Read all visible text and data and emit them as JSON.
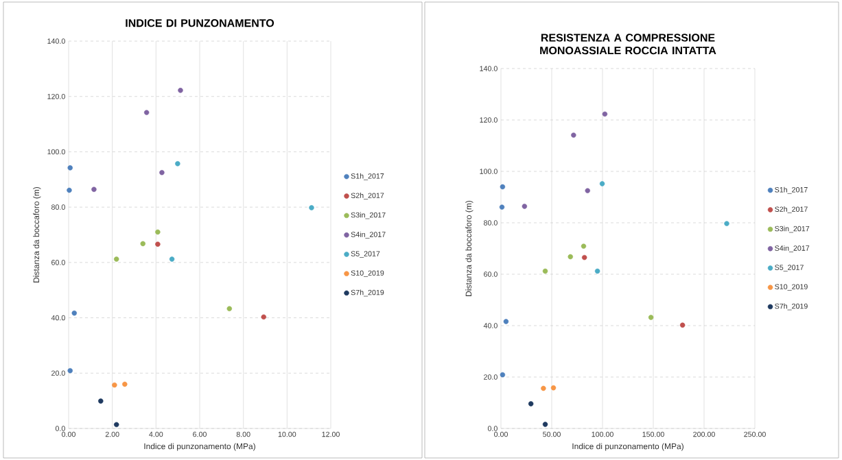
{
  "chart_data": [
    {
      "type": "scatter",
      "title": "INDICE DI PUNZONAMENTO",
      "xlabel": "Indice di punzonamento (MPa)",
      "ylabel": "Distanza da boccaforo (m)",
      "xlim": [
        0,
        12
      ],
      "ylim": [
        0,
        140
      ],
      "xticks": [
        {
          "value": 0,
          "label": "0.00"
        },
        {
          "value": 2,
          "label": "2.00"
        },
        {
          "value": 4,
          "label": "4.00"
        },
        {
          "value": 6,
          "label": "6.00"
        },
        {
          "value": 8,
          "label": "8.00"
        },
        {
          "value": 10,
          "label": "10.00"
        },
        {
          "value": 12,
          "label": "12.00"
        }
      ],
      "yticks": [
        {
          "value": 0,
          "label": "0.0"
        },
        {
          "value": 20,
          "label": "20.0"
        },
        {
          "value": 40,
          "label": "40.0"
        },
        {
          "value": 60,
          "label": "60.0"
        },
        {
          "value": 80,
          "label": "80.0"
        },
        {
          "value": 100,
          "label": "100.0"
        },
        {
          "value": 120,
          "label": "120.0"
        },
        {
          "value": 140,
          "label": "140.0"
        }
      ],
      "grid": true,
      "legend": "right",
      "marker": "circle",
      "series": [
        {
          "name": "S1h_2017",
          "color": "#4f81bd",
          "x": [
            0.07,
            0.03,
            0.26,
            0.07
          ],
          "values": [
            94.2,
            86.1,
            41.7,
            20.9
          ]
        },
        {
          "name": "S2h_2017",
          "color": "#c0504d",
          "x": [
            4.08,
            8.93
          ],
          "values": [
            66.6,
            40.3
          ]
        },
        {
          "name": "S3in_2017",
          "color": "#9bbb59",
          "x": [
            2.19,
            3.4,
            4.08,
            7.36
          ],
          "values": [
            61.2,
            66.8,
            71.0,
            43.3
          ]
        },
        {
          "name": "S4in_2017",
          "color": "#8064a2",
          "x": [
            1.16,
            3.57,
            4.27,
            5.12
          ],
          "values": [
            86.4,
            114.2,
            92.5,
            122.2
          ]
        },
        {
          "name": "S5_2017",
          "color": "#4bacc6",
          "x": [
            4.73,
            4.99,
            11.12
          ],
          "values": [
            61.2,
            95.7,
            79.8
          ]
        },
        {
          "name": "S10_2019",
          "color": "#f79646",
          "x": [
            2.1,
            2.57
          ],
          "values": [
            15.7,
            16.0
          ]
        },
        {
          "name": "S7h_2019",
          "color": "#1f3a60",
          "x": [
            1.47,
            2.19
          ],
          "values": [
            9.9,
            1.4
          ]
        }
      ]
    },
    {
      "type": "scatter",
      "title": "RESISTENZA A COMPRESSIONE MONOASSIALE ROCCIA INTATTA",
      "xlabel": "Indice di punzonamento (MPa)",
      "ylabel": "Distanza da boccaforo (m)",
      "xlim": [
        0,
        250
      ],
      "ylim": [
        0,
        140
      ],
      "xticks": [
        {
          "value": 0,
          "label": "0.00"
        },
        {
          "value": 50,
          "label": "50.00"
        },
        {
          "value": 100,
          "label": "100.00"
        },
        {
          "value": 150,
          "label": "150.00"
        },
        {
          "value": 200,
          "label": "200.00"
        },
        {
          "value": 250,
          "label": "250.00"
        }
      ],
      "yticks": [
        {
          "value": 0,
          "label": "0.0"
        },
        {
          "value": 20,
          "label": "20.0"
        },
        {
          "value": 40,
          "label": "40.0"
        },
        {
          "value": 60,
          "label": "60.0"
        },
        {
          "value": 80,
          "label": "80.0"
        },
        {
          "value": 100,
          "label": "100.0"
        },
        {
          "value": 120,
          "label": "120.0"
        },
        {
          "value": 140,
          "label": "140.0"
        }
      ],
      "grid": true,
      "legend": "right",
      "marker": "circle",
      "series": [
        {
          "name": "S1h_2017",
          "color": "#4f81bd",
          "x": [
            1.6,
            1.0,
            5.0,
            1.6
          ],
          "values": [
            94.0,
            86.1,
            41.6,
            20.9
          ]
        },
        {
          "name": "S2h_2017",
          "color": "#c0504d",
          "x": [
            82.2,
            178.8
          ],
          "values": [
            66.5,
            40.2
          ]
        },
        {
          "name": "S3in_2017",
          "color": "#9bbb59",
          "x": [
            43.6,
            68.4,
            81.4,
            147.7
          ],
          "values": [
            61.2,
            66.8,
            70.9,
            43.2
          ]
        },
        {
          "name": "S4in_2017",
          "color": "#8064a2",
          "x": [
            23.2,
            71.5,
            85.3,
            102.3
          ],
          "values": [
            86.4,
            114.1,
            92.5,
            122.3
          ]
        },
        {
          "name": "S5_2017",
          "color": "#4bacc6",
          "x": [
            95.0,
            99.7,
            222.3
          ],
          "values": [
            61.2,
            95.2,
            79.7
          ]
        },
        {
          "name": "S10_2019",
          "color": "#f79646",
          "x": [
            41.8,
            51.7
          ],
          "values": [
            15.6,
            15.8
          ]
        },
        {
          "name": "S7h_2019",
          "color": "#1f3a60",
          "x": [
            29.5,
            43.6
          ],
          "values": [
            9.6,
            1.6
          ]
        }
      ]
    }
  ]
}
